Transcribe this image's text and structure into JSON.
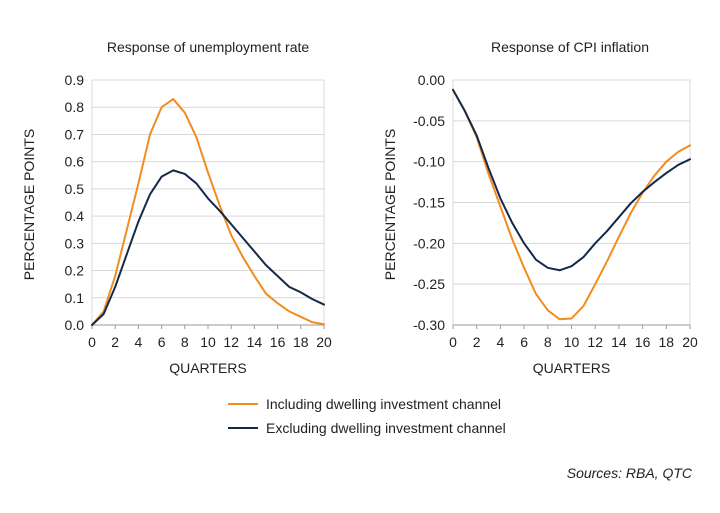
{
  "colors": {
    "including": "#f28c1e",
    "excluding": "#13294b",
    "grid": "#d9d9d9",
    "axis": "#999999"
  },
  "legend": {
    "items": [
      {
        "label": "Including dwelling investment channel",
        "color": "#f28c1e"
      },
      {
        "label": "Excluding dwelling investment channel",
        "color": "#13294b"
      }
    ]
  },
  "source": "Sources: RBA, QTC",
  "chart_data": [
    {
      "type": "line",
      "title": "Response of unemployment rate",
      "xlabel": "QUARTERS",
      "ylabel": "PERCENTAGE POINTS",
      "xlim": [
        0,
        20
      ],
      "ylim": [
        0,
        0.9
      ],
      "xticks": [
        0,
        2,
        4,
        6,
        8,
        10,
        12,
        14,
        16,
        18,
        20
      ],
      "yticks": [
        0,
        0.1,
        0.2,
        0.3,
        0.4,
        0.5,
        0.6,
        0.7,
        0.8,
        0.9
      ],
      "ytick_labels": [
        "0.0",
        "0.1",
        "0.2",
        "0.3",
        "0.4",
        "0.5",
        "0.6",
        "0.7",
        "0.8",
        "0.9"
      ],
      "grid": true,
      "x": [
        0,
        1,
        2,
        3,
        4,
        5,
        6,
        7,
        8,
        9,
        10,
        11,
        12,
        13,
        14,
        15,
        16,
        17,
        18,
        19,
        20
      ],
      "series": [
        {
          "name": "Including dwelling investment channel",
          "values": [
            0.0,
            0.05,
            0.18,
            0.35,
            0.52,
            0.7,
            0.8,
            0.83,
            0.78,
            0.69,
            0.56,
            0.44,
            0.33,
            0.25,
            0.18,
            0.115,
            0.08,
            0.05,
            0.03,
            0.01,
            0.003
          ]
        },
        {
          "name": "Excluding dwelling investment channel",
          "values": [
            0.0,
            0.04,
            0.14,
            0.26,
            0.38,
            0.48,
            0.545,
            0.568,
            0.555,
            0.52,
            0.465,
            0.42,
            0.37,
            0.32,
            0.27,
            0.22,
            0.18,
            0.14,
            0.12,
            0.095,
            0.075
          ]
        }
      ]
    },
    {
      "type": "line",
      "title": "Response of CPI inflation",
      "xlabel": "QUARTERS",
      "ylabel": "PERCENTAGE POINTS",
      "xlim": [
        0,
        20
      ],
      "ylim": [
        -0.3,
        0.0
      ],
      "xticks": [
        0,
        2,
        4,
        6,
        8,
        10,
        12,
        14,
        16,
        18,
        20
      ],
      "yticks": [
        0,
        -0.05,
        -0.1,
        -0.15,
        -0.2,
        -0.25,
        -0.3
      ],
      "ytick_labels": [
        "0.00",
        "-0.05",
        "-0.10",
        "-0.15",
        "-0.20",
        "-0.25",
        "-0.30"
      ],
      "grid": true,
      "x": [
        0,
        1,
        2,
        3,
        4,
        5,
        6,
        7,
        8,
        9,
        10,
        11,
        12,
        13,
        14,
        15,
        16,
        17,
        18,
        19,
        20
      ],
      "series": [
        {
          "name": "Including dwelling investment channel",
          "values": [
            -0.012,
            -0.038,
            -0.07,
            -0.115,
            -0.155,
            -0.195,
            -0.23,
            -0.262,
            -0.282,
            -0.293,
            -0.292,
            -0.277,
            -0.25,
            -0.222,
            -0.192,
            -0.163,
            -0.138,
            -0.117,
            -0.1,
            -0.088,
            -0.08
          ]
        },
        {
          "name": "Excluding dwelling investment channel",
          "values": [
            -0.012,
            -0.038,
            -0.068,
            -0.108,
            -0.145,
            -0.175,
            -0.2,
            -0.22,
            -0.23,
            -0.233,
            -0.228,
            -0.217,
            -0.2,
            -0.185,
            -0.168,
            -0.151,
            -0.137,
            -0.125,
            -0.114,
            -0.104,
            -0.097
          ]
        }
      ]
    }
  ]
}
